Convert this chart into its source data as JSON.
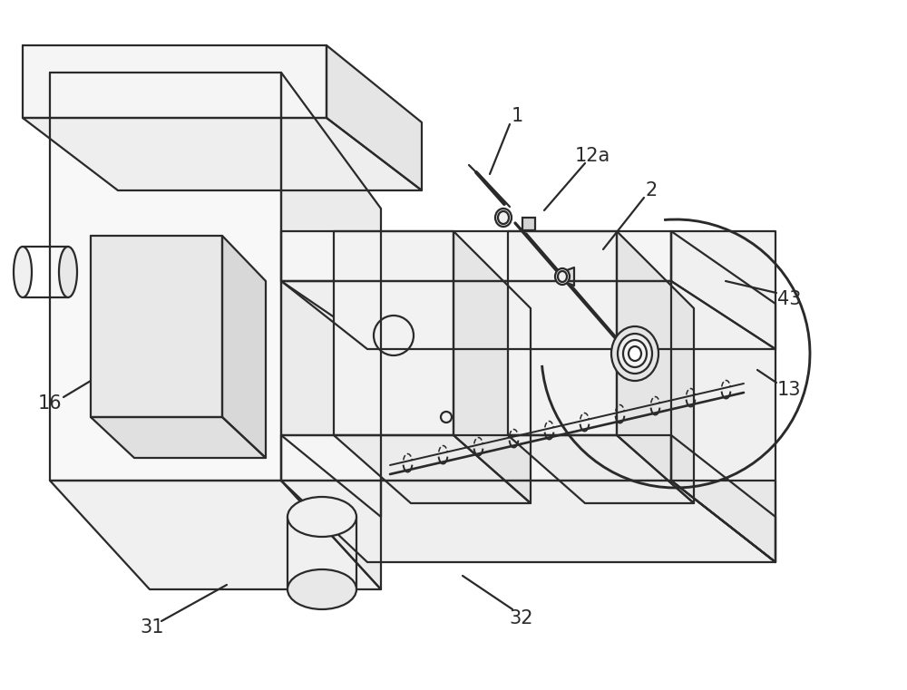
{
  "background_color": "#ffffff",
  "line_color": "#2a2a2a",
  "line_width": 1.6,
  "fig_width": 10.0,
  "fig_height": 7.61,
  "label_fontsize": 15
}
